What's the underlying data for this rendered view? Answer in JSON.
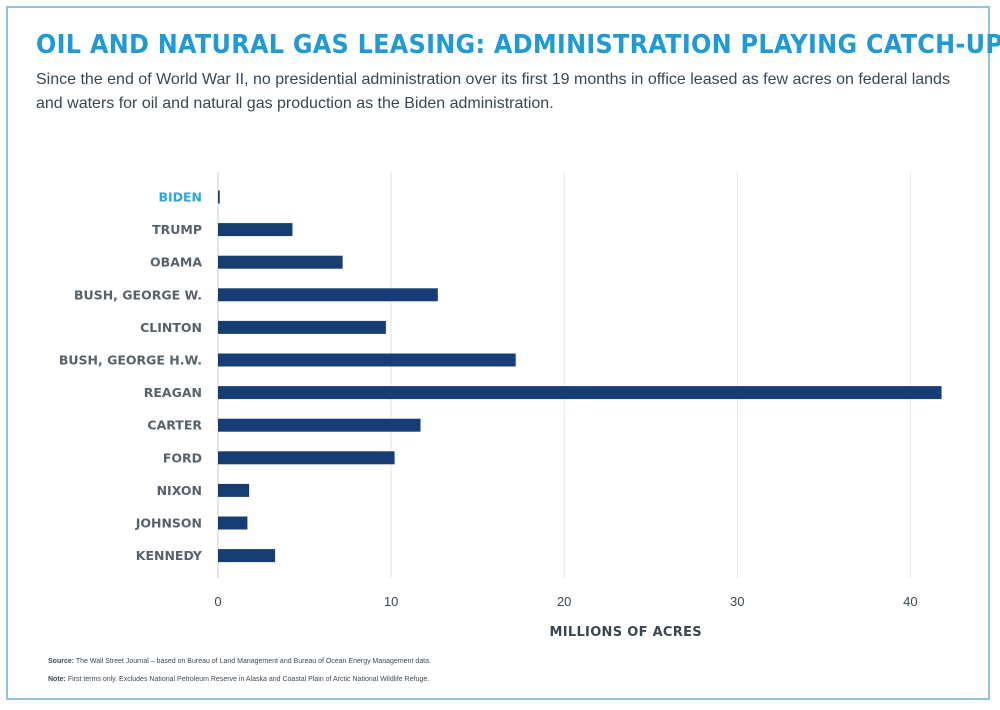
{
  "header": {
    "title": "OIL AND NATURAL GAS LEASING: ADMINISTRATION PLAYING CATCH-UP",
    "subtitle": "Since the end of World War II, no presidential administration over its first 19 months in office leased as few acres on federal lands and waters for oil and natural gas production as the Biden administration."
  },
  "footer": {
    "source_label": "Source:",
    "source_text": "The Wall Street Journal – based on Bureau of Land Management and Bureau of Ocean Energy Management data.",
    "note_label": "Note:",
    "note_text": "First terms only. Excludes National Petroleum Reserve in Alaska and Coastal Plain of Arctic National Wildlife Refuge."
  },
  "colors": {
    "title": "#1e9bd7",
    "bar": "#163d74",
    "highlight_label": "#2aa6e2",
    "gridline": "#e3e6e9",
    "frame": "#8fc3e4"
  },
  "chart_data": {
    "type": "bar",
    "orientation": "horizontal",
    "categories": [
      "BIDEN",
      "TRUMP",
      "OBAMA",
      "BUSH, GEORGE W.",
      "CLINTON",
      "BUSH, GEORGE H.W.",
      "REAGAN",
      "CARTER",
      "FORD",
      "NIXON",
      "JOHNSON",
      "KENNEDY"
    ],
    "values": [
      0.1,
      4.3,
      7.2,
      12.7,
      9.7,
      17.2,
      41.8,
      11.7,
      10.2,
      1.8,
      1.7,
      3.3
    ],
    "highlight_category": "BIDEN",
    "xlabel": "MILLIONS OF ACRES",
    "ylabel": "",
    "xlim": [
      0,
      42
    ],
    "xticks": [
      0,
      10,
      20,
      30,
      40
    ],
    "grid": true
  }
}
